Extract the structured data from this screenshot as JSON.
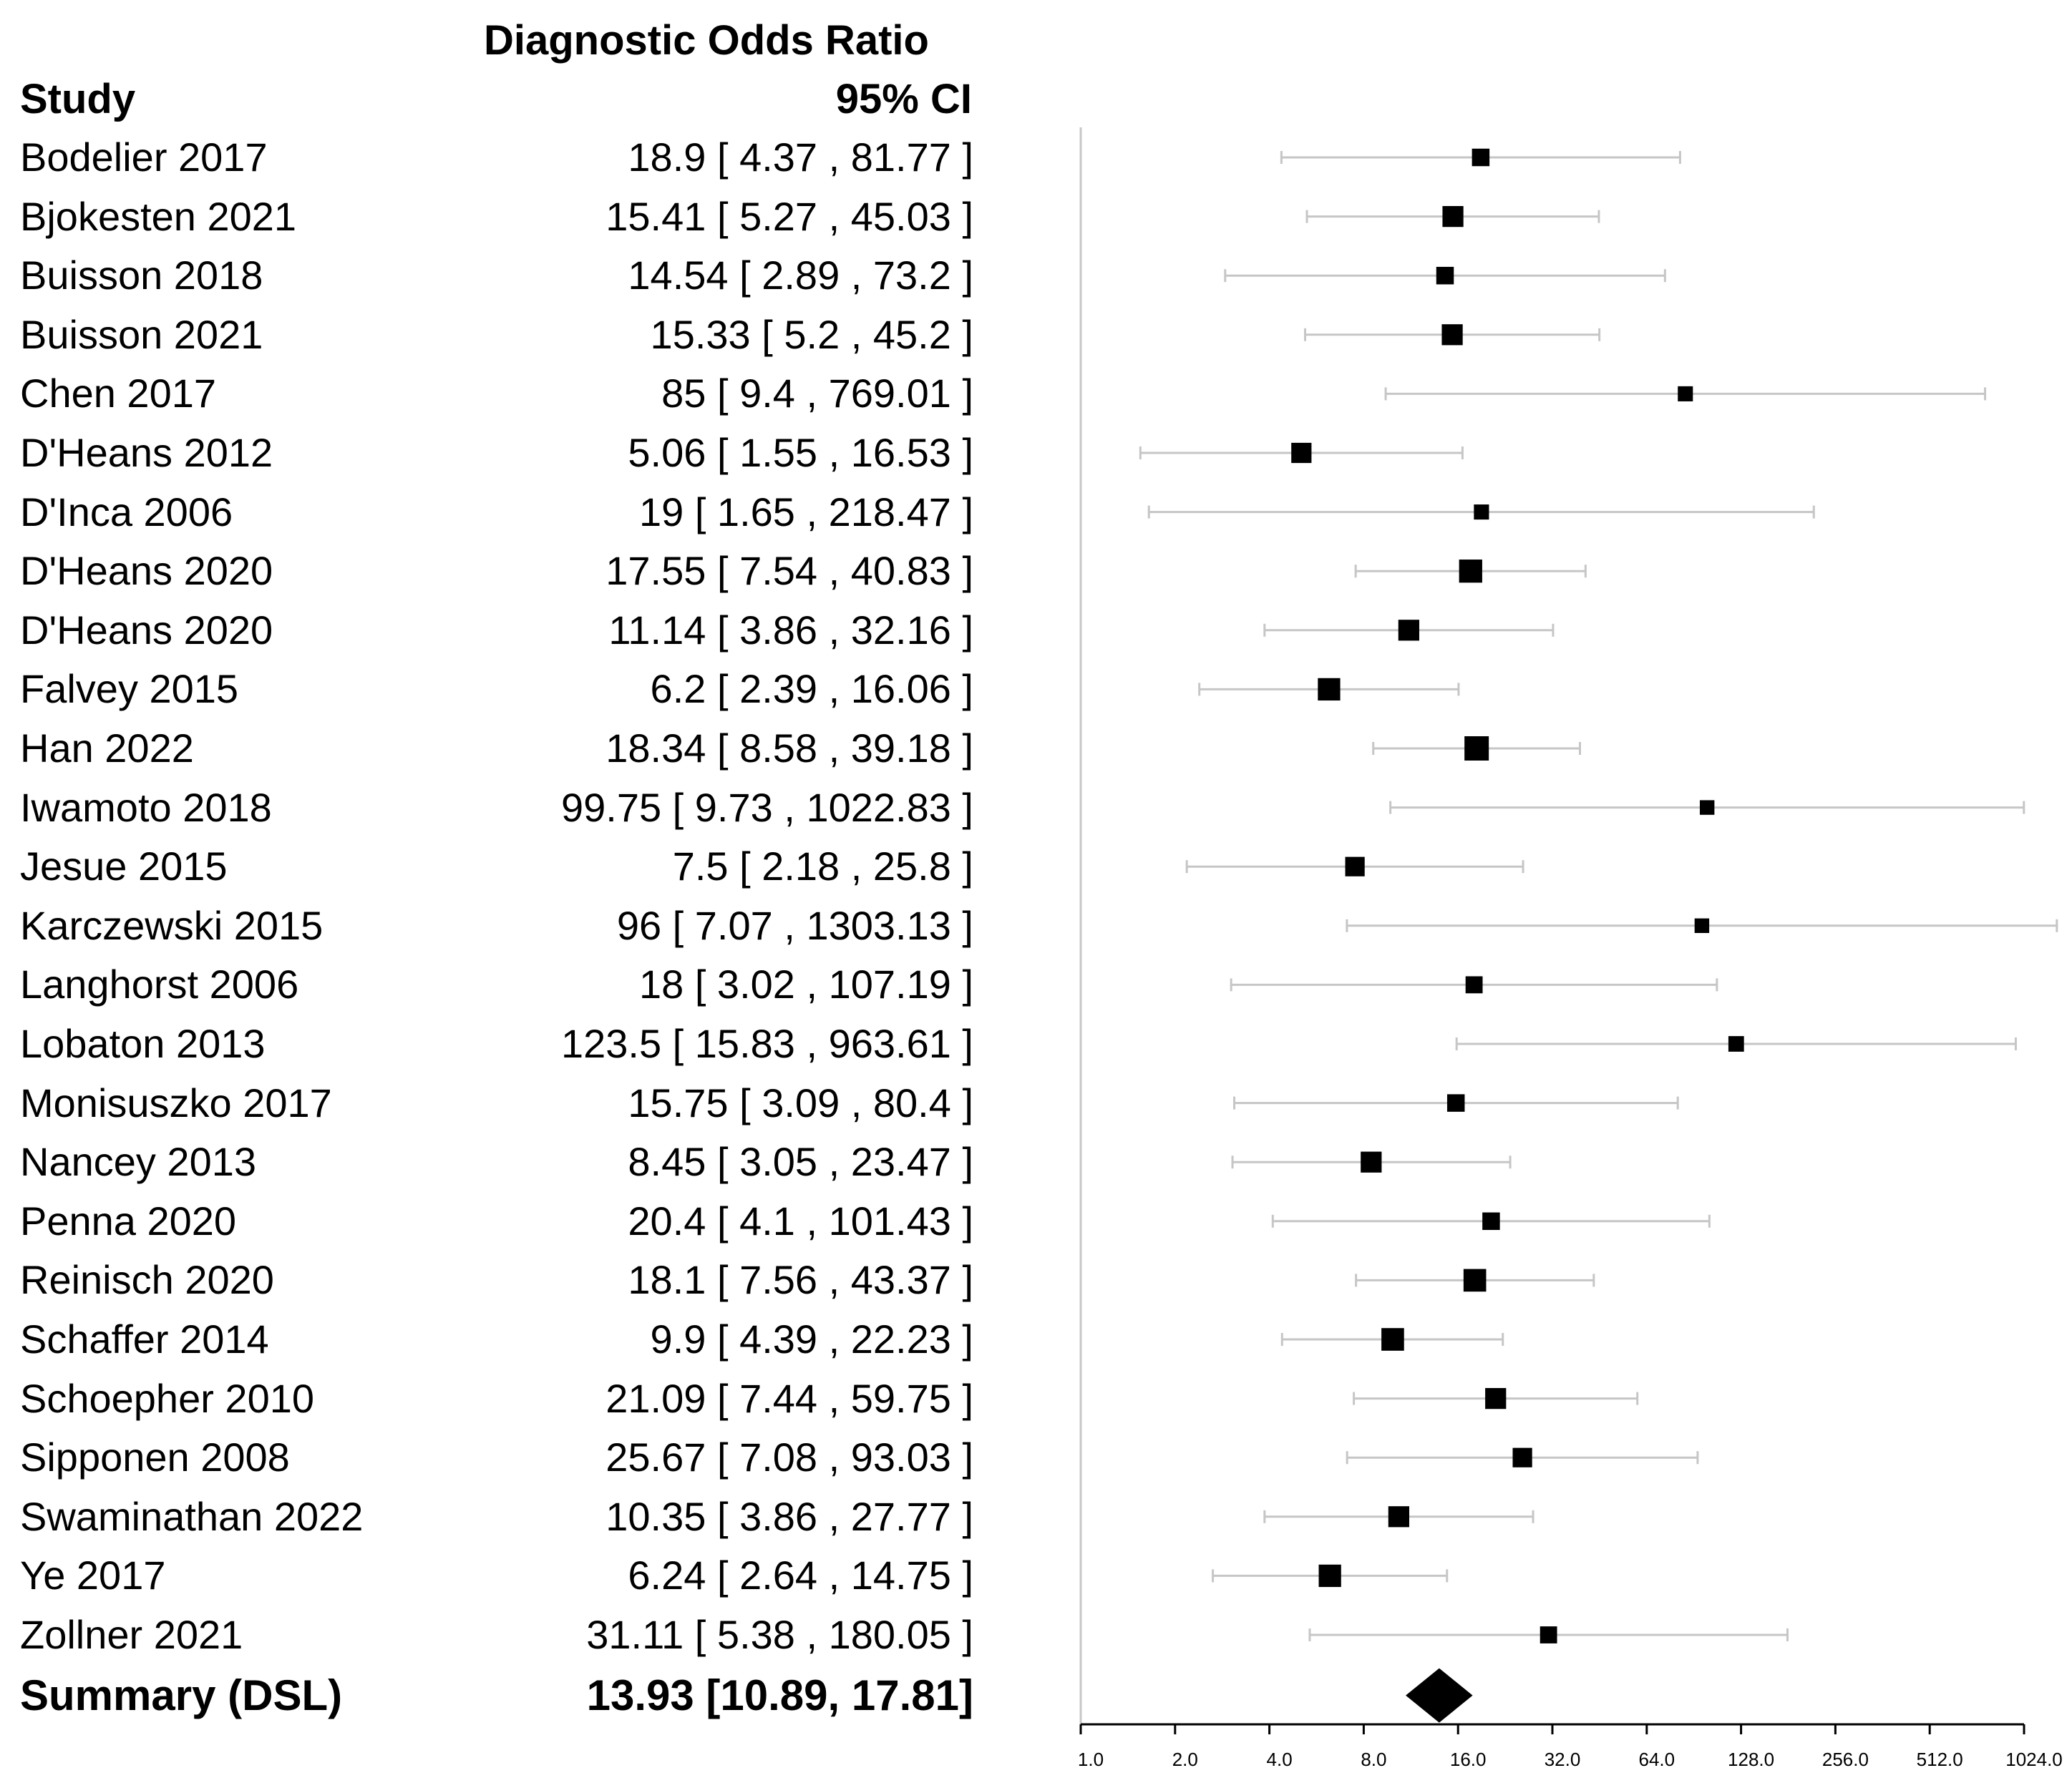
{
  "chart_data": {
    "type": "forest",
    "title": "Diagnostic Odds Ratio",
    "subtitle": "95% CI",
    "study_header": "Study",
    "x_scale": "log2",
    "xlim": [
      1,
      1024
    ],
    "ticks": [
      "1.0",
      "2.0",
      "4.0",
      "8.0",
      "16.0",
      "32.0",
      "64.0",
      "128.0",
      "256.0",
      "512.0",
      "1024.0"
    ],
    "tick_values": [
      1,
      2,
      4,
      8,
      16,
      32,
      64,
      128,
      256,
      512,
      1024
    ],
    "studies": [
      {
        "name": "Bodelier 2017",
        "label": "18.9 [ 4.37 , 81.77 ]",
        "est": 18.9,
        "lo": 4.37,
        "hi": 81.77,
        "weight": 0.72
      },
      {
        "name": "Bjokesten 2021",
        "label": "15.41 [ 5.27 , 45.03 ]",
        "est": 15.41,
        "lo": 5.27,
        "hi": 45.03,
        "weight": 0.86
      },
      {
        "name": "Buisson 2018",
        "label": "14.54 [ 2.89 , 73.2 ]",
        "est": 14.54,
        "lo": 2.89,
        "hi": 73.2,
        "weight": 0.72
      },
      {
        "name": "Buisson 2021",
        "label": "15.33 [ 5.2 , 45.2 ]",
        "est": 15.33,
        "lo": 5.2,
        "hi": 45.2,
        "weight": 0.86
      },
      {
        "name": "Chen 2017",
        "label": "85 [ 9.4 , 769.01 ]",
        "est": 85,
        "lo": 9.4,
        "hi": 769.01,
        "weight": 0.62
      },
      {
        "name": "D'Heans 2012",
        "label": "5.06 [ 1.55 , 16.53 ]",
        "est": 5.06,
        "lo": 1.55,
        "hi": 16.53,
        "weight": 0.83
      },
      {
        "name": "D'Inca 2006",
        "label": "19 [ 1.65 , 218.47 ]",
        "est": 19,
        "lo": 1.65,
        "hi": 218.47,
        "weight": 0.62
      },
      {
        "name": "D'Heans 2020",
        "label": "17.55 [ 7.54 , 40.83 ]",
        "est": 17.55,
        "lo": 7.54,
        "hi": 40.83,
        "weight": 0.95
      },
      {
        "name": "D'Heans 2020",
        "label": "11.14 [ 3.86 , 32.16 ]",
        "est": 11.14,
        "lo": 3.86,
        "hi": 32.16,
        "weight": 0.86
      },
      {
        "name": "Falvey 2015",
        "label": "6.2 [ 2.39 , 16.06 ]",
        "est": 6.2,
        "lo": 2.39,
        "hi": 16.06,
        "weight": 0.92
      },
      {
        "name": "Han 2022",
        "label": "18.34 [ 8.58 , 39.18 ]",
        "est": 18.34,
        "lo": 8.58,
        "hi": 39.18,
        "weight": 1.0
      },
      {
        "name": "Iwamoto 2018",
        "label": "99.75 [ 9.73 , 1022.83 ]",
        "est": 99.75,
        "lo": 9.73,
        "hi": 1022.83,
        "weight": 0.6
      },
      {
        "name": "Jesue 2015",
        "label": "7.5 [ 2.18 , 25.8 ]",
        "est": 7.5,
        "lo": 2.18,
        "hi": 25.8,
        "weight": 0.8
      },
      {
        "name": "Karczewski 2015",
        "label": "96 [ 7.07 , 1303.13 ]",
        "est": 96,
        "lo": 7.07,
        "hi": 1303.13,
        "weight": 0.6
      },
      {
        "name": "Langhorst 2006",
        "label": "18 [ 3.02 , 107.19 ]",
        "est": 18,
        "lo": 3.02,
        "hi": 107.19,
        "weight": 0.7
      },
      {
        "name": "Lobaton 2013",
        "label": "123.5 [ 15.83 , 963.61 ]",
        "est": 123.5,
        "lo": 15.83,
        "hi": 963.61,
        "weight": 0.64
      },
      {
        "name": "Monisuszko 2017",
        "label": "15.75 [ 3.09 , 80.4 ]",
        "est": 15.75,
        "lo": 3.09,
        "hi": 80.4,
        "weight": 0.72
      },
      {
        "name": "Nancey 2013",
        "label": "8.45 [ 3.05 , 23.47 ]",
        "est": 8.45,
        "lo": 3.05,
        "hi": 23.47,
        "weight": 0.86
      },
      {
        "name": "Penna 2020",
        "label": "20.4 [ 4.1 , 101.43 ]",
        "est": 20.4,
        "lo": 4.1,
        "hi": 101.43,
        "weight": 0.72
      },
      {
        "name": "Reinisch 2020",
        "label": "18.1 [ 7.56 , 43.37 ]",
        "est": 18.1,
        "lo": 7.56,
        "hi": 43.37,
        "weight": 0.93
      },
      {
        "name": "Schaffer 2014",
        "label": "9.9 [ 4.39 , 22.23 ]",
        "est": 9.9,
        "lo": 4.39,
        "hi": 22.23,
        "weight": 0.93
      },
      {
        "name": "Schoepher 2010",
        "label": "21.09 [ 7.44 , 59.75 ]",
        "est": 21.09,
        "lo": 7.44,
        "hi": 59.75,
        "weight": 0.86
      },
      {
        "name": "Sipponen 2008",
        "label": "25.67 [ 7.08 , 93.03 ]",
        "est": 25.67,
        "lo": 7.08,
        "hi": 93.03,
        "weight": 0.8
      },
      {
        "name": "Swaminathan 2022",
        "label": "10.35 [ 3.86 , 27.77 ]",
        "est": 10.35,
        "lo": 3.86,
        "hi": 27.77,
        "weight": 0.86
      },
      {
        "name": "Ye 2017",
        "label": "6.24 [ 2.64 , 14.75 ]",
        "est": 6.24,
        "lo": 2.64,
        "hi": 14.75,
        "weight": 0.92
      },
      {
        "name": "Zollner 2021",
        "label": "31.11 [ 5.38 , 180.05 ]",
        "est": 31.11,
        "lo": 5.38,
        "hi": 180.05,
        "weight": 0.7
      }
    ],
    "summary": {
      "name": "Summary (DSL)",
      "label": "13.93 [10.89, 17.81]",
      "est": 13.93,
      "lo": 10.89,
      "hi": 17.81
    }
  }
}
